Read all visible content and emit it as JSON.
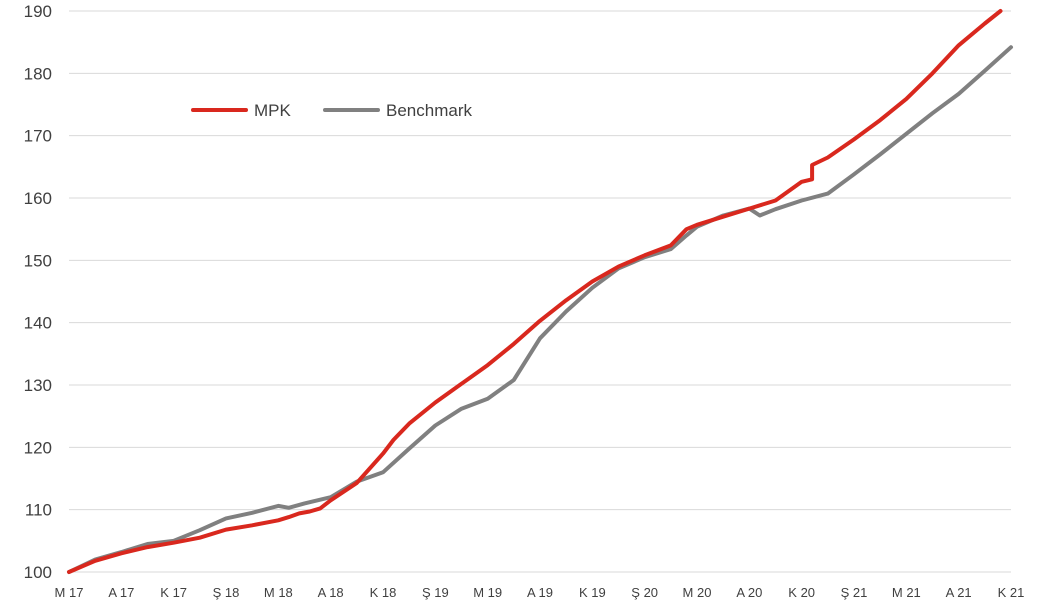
{
  "chart_data": {
    "type": "line",
    "title": "",
    "xlabel": "",
    "ylabel": "",
    "ylim": [
      100,
      190
    ],
    "yticks": [
      100,
      110,
      120,
      130,
      140,
      150,
      160,
      170,
      180,
      190
    ],
    "grid": true,
    "legend_position": "upper-left, inside plot",
    "x_tick_labels": [
      "M 17",
      "A 17",
      "K 17",
      "Ş 18",
      "M 18",
      "A 18",
      "K 18",
      "Ş 19",
      "M 19",
      "A 19",
      "K 19",
      "Ş 20",
      "M 20",
      "A 20",
      "K 20",
      "Ş 21",
      "M 21",
      "A 21",
      "K 21"
    ],
    "x_index_range": [
      0,
      18
    ],
    "series": [
      {
        "name": "MPK",
        "color": "#d9281e",
        "points": [
          [
            0,
            100.0
          ],
          [
            0.5,
            101.8
          ],
          [
            1,
            103.0
          ],
          [
            1.5,
            104.0
          ],
          [
            2,
            104.7
          ],
          [
            2.5,
            105.5
          ],
          [
            3,
            106.8
          ],
          [
            3.5,
            107.5
          ],
          [
            4,
            108.3
          ],
          [
            4.2,
            108.8
          ],
          [
            4.4,
            109.4
          ],
          [
            4.6,
            109.7
          ],
          [
            4.8,
            110.2
          ],
          [
            5,
            111.5
          ],
          [
            5.5,
            114.3
          ],
          [
            6,
            119.0
          ],
          [
            6.2,
            121.2
          ],
          [
            6.5,
            123.8
          ],
          [
            7,
            127.2
          ],
          [
            7.5,
            130.2
          ],
          [
            8,
            133.2
          ],
          [
            8.5,
            136.6
          ],
          [
            9,
            140.3
          ],
          [
            9.5,
            143.6
          ],
          [
            10,
            146.6
          ],
          [
            10.5,
            149.0
          ],
          [
            11,
            150.8
          ],
          [
            11.5,
            152.4
          ],
          [
            11.8,
            155.0
          ],
          [
            12,
            155.7
          ],
          [
            12.5,
            157.0
          ],
          [
            13,
            158.3
          ],
          [
            13.5,
            159.6
          ],
          [
            14,
            162.6
          ],
          [
            14.2,
            163.0
          ],
          [
            14.2,
            165.3
          ],
          [
            14.5,
            166.5
          ],
          [
            15,
            169.4
          ],
          [
            15.5,
            172.5
          ],
          [
            16,
            175.9
          ],
          [
            16.5,
            180.0
          ],
          [
            17,
            184.5
          ],
          [
            17.5,
            188.0
          ],
          [
            17.8,
            190.0
          ]
        ]
      },
      {
        "name": "Benchmark",
        "color": "#808080",
        "points": [
          [
            0,
            100.0
          ],
          [
            0.5,
            102.0
          ],
          [
            1,
            103.2
          ],
          [
            1.5,
            104.5
          ],
          [
            2,
            105.0
          ],
          [
            2.5,
            106.7
          ],
          [
            3,
            108.6
          ],
          [
            3.5,
            109.5
          ],
          [
            4,
            110.6
          ],
          [
            4.2,
            110.3
          ],
          [
            4.5,
            111.0
          ],
          [
            5,
            112.0
          ],
          [
            5.3,
            113.5
          ],
          [
            5.5,
            114.5
          ],
          [
            6,
            116.0
          ],
          [
            6.5,
            119.8
          ],
          [
            7,
            123.5
          ],
          [
            7.5,
            126.2
          ],
          [
            8,
            127.8
          ],
          [
            8.5,
            130.8
          ],
          [
            9,
            137.5
          ],
          [
            9.5,
            141.8
          ],
          [
            10,
            145.6
          ],
          [
            10.5,
            148.7
          ],
          [
            11,
            150.5
          ],
          [
            11.5,
            151.8
          ],
          [
            11.8,
            154.0
          ],
          [
            12,
            155.4
          ],
          [
            12.5,
            157.2
          ],
          [
            13,
            158.3
          ],
          [
            13.2,
            157.2
          ],
          [
            13.5,
            158.2
          ],
          [
            14,
            159.6
          ],
          [
            14.5,
            160.7
          ],
          [
            15,
            163.8
          ],
          [
            15.5,
            167.0
          ],
          [
            16,
            170.3
          ],
          [
            16.5,
            173.6
          ],
          [
            17,
            176.7
          ],
          [
            17.5,
            180.4
          ],
          [
            18,
            184.2
          ]
        ]
      }
    ]
  }
}
